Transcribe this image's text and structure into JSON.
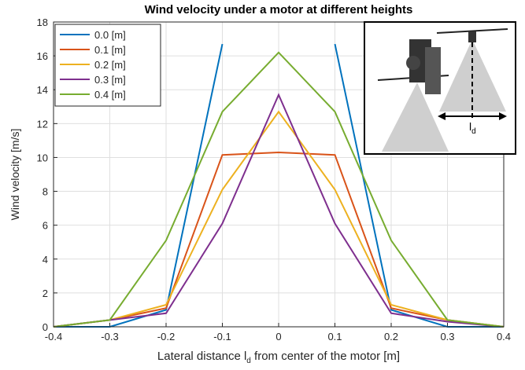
{
  "chart_data": {
    "type": "line",
    "title": "Wind velocity under a motor at different heights",
    "xlabel": {
      "before": "Lateral distance l",
      "sub": "d",
      "after": " from center of the motor [m]"
    },
    "ylabel": "Wind velocity [m/s]",
    "x": [
      -0.4,
      -0.3,
      -0.2,
      -0.1,
      0,
      0.1,
      0.2,
      0.3,
      0.4
    ],
    "series": [
      {
        "name": "0.0 [m]",
        "color": "#0072bd",
        "values": [
          0,
          0,
          1.0,
          16.7,
          null,
          16.7,
          1.0,
          0,
          0
        ]
      },
      {
        "name": "0.1 [m]",
        "color": "#d95319",
        "values": [
          0,
          0.4,
          1.1,
          10.15,
          10.3,
          10.15,
          1.1,
          0.4,
          0
        ]
      },
      {
        "name": "0.2 [m]",
        "color": "#edb120",
        "values": [
          0,
          0.4,
          1.3,
          8.1,
          12.7,
          8.1,
          1.3,
          0.4,
          0
        ]
      },
      {
        "name": "0.3 [m]",
        "color": "#7e2f8e",
        "values": [
          0,
          0.4,
          0.8,
          6.1,
          13.7,
          6.1,
          0.8,
          0.3,
          0
        ]
      },
      {
        "name": "0.4 [m]",
        "color": "#77ac30",
        "values": [
          0,
          0.4,
          5.1,
          12.7,
          16.2,
          12.7,
          5.1,
          0.4,
          0
        ]
      }
    ],
    "xlim": [
      -0.4,
      0.4
    ],
    "xticks": [
      -0.4,
      -0.3,
      -0.2,
      -0.1,
      0,
      0.1,
      0.2,
      0.3,
      0.4
    ],
    "ylim": [
      0,
      18
    ],
    "yticks": [
      0,
      2,
      4,
      6,
      8,
      10,
      12,
      14,
      16,
      18
    ],
    "grid": true,
    "legend": "upper-left",
    "inset": {
      "label": "l",
      "label_sub": "d"
    }
  }
}
